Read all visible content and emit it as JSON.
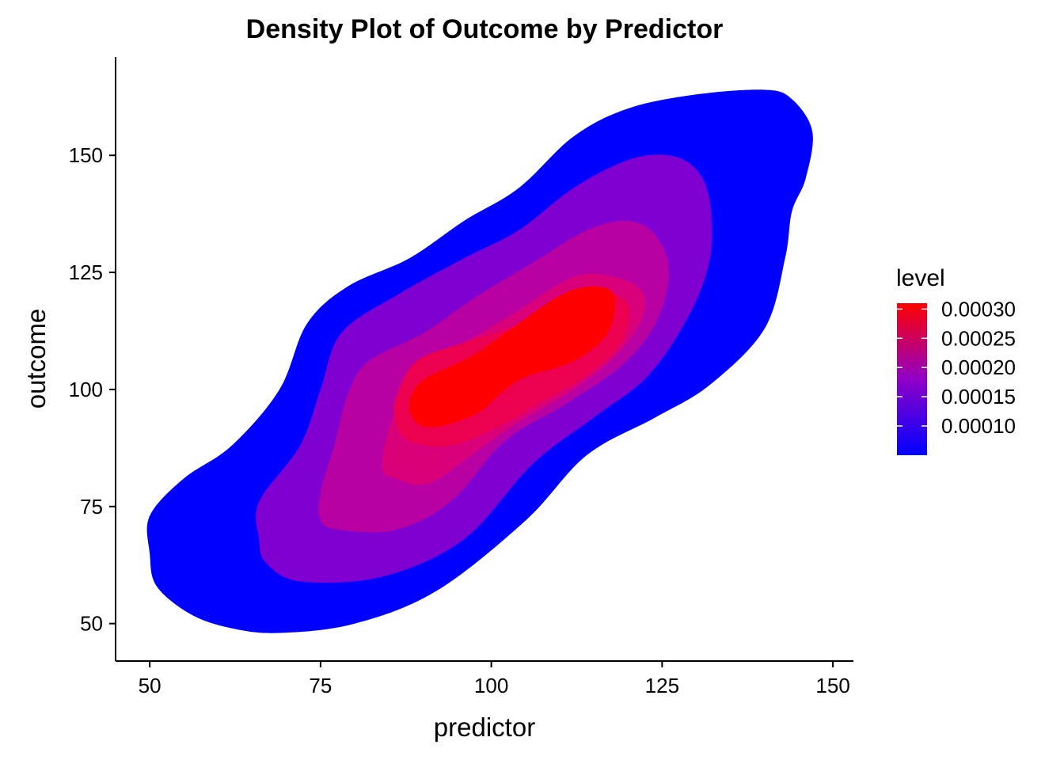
{
  "chart_data": {
    "type": "density_contour",
    "title": "Density Plot of Outcome by Predictor",
    "xlabel": "predictor",
    "ylabel": "outcome",
    "xlim": [
      45,
      153
    ],
    "ylim": [
      42,
      171
    ],
    "x_ticks": [
      50,
      75,
      100,
      125,
      150
    ],
    "y_ticks": [
      50,
      75,
      100,
      125,
      150
    ],
    "grid": false,
    "legend": {
      "title": "level",
      "placement": "right",
      "range": [
        5e-05,
        0.00031
      ],
      "breaks": [
        {
          "value": 0.0003,
          "label": "0.00030"
        },
        {
          "value": 0.00025,
          "label": "0.00025"
        },
        {
          "value": 0.0002,
          "label": "0.00020"
        },
        {
          "value": 0.00015,
          "label": "0.00015"
        },
        {
          "value": 0.0001,
          "label": "0.00010"
        }
      ],
      "low_color": "#0000FF",
      "high_color": "#FF0000"
    },
    "levels": [
      {
        "level": 5e-05,
        "color": "#0000FF",
        "polygon": [
          [
            55,
            81
          ],
          [
            62,
            88
          ],
          [
            69,
            100
          ],
          [
            73,
            114
          ],
          [
            79,
            122
          ],
          [
            88,
            128
          ],
          [
            96,
            136
          ],
          [
            104,
            143
          ],
          [
            112,
            154
          ],
          [
            120,
            160
          ],
          [
            130,
            163
          ],
          [
            140,
            164
          ],
          [
            144,
            162
          ],
          [
            147,
            155
          ],
          [
            146,
            145
          ],
          [
            144,
            138
          ],
          [
            143,
            128
          ],
          [
            140,
            113
          ],
          [
            132,
            101
          ],
          [
            124,
            94
          ],
          [
            114,
            86
          ],
          [
            105,
            72
          ],
          [
            92,
            57
          ],
          [
            80,
            50
          ],
          [
            69,
            48
          ],
          [
            62,
            49
          ],
          [
            56,
            52
          ],
          [
            51,
            58
          ],
          [
            50,
            65
          ],
          [
            50,
            73
          ]
        ]
      },
      {
        "level": 0.0001,
        "color": "#7F00D0",
        "polygon": [
          [
            66,
            76
          ],
          [
            72,
            88
          ],
          [
            75,
            100
          ],
          [
            78,
            112
          ],
          [
            86,
            120
          ],
          [
            96,
            128
          ],
          [
            104,
            134
          ],
          [
            112,
            143
          ],
          [
            120,
            149
          ],
          [
            126,
            150
          ],
          [
            130,
            147
          ],
          [
            132,
            140
          ],
          [
            132,
            128
          ],
          [
            129,
            116
          ],
          [
            123,
            103
          ],
          [
            115,
            94
          ],
          [
            106,
            84
          ],
          [
            96,
            68
          ],
          [
            84,
            60
          ],
          [
            72,
            59
          ],
          [
            67,
            63
          ],
          [
            66,
            68
          ]
        ]
      },
      {
        "level": 0.00015,
        "color": "#B800A3",
        "polygon": [
          [
            75,
            78
          ],
          [
            77,
            88
          ],
          [
            79,
            99
          ],
          [
            82,
            106
          ],
          [
            90,
            112
          ],
          [
            98,
            120
          ],
          [
            106,
            127
          ],
          [
            114,
            134
          ],
          [
            120,
            136
          ],
          [
            124,
            133
          ],
          [
            126,
            125
          ],
          [
            124,
            114
          ],
          [
            119,
            105
          ],
          [
            111,
            97
          ],
          [
            102,
            89
          ],
          [
            94,
            76
          ],
          [
            86,
            70
          ],
          [
            78,
            70
          ],
          [
            75,
            72
          ]
        ]
      },
      {
        "level": 0.0002,
        "color": "#D9007A",
        "polygon": [
          [
            84,
            84
          ],
          [
            86,
            96
          ],
          [
            89,
            104
          ],
          [
            96,
            110
          ],
          [
            103,
            116
          ],
          [
            112,
            124
          ],
          [
            118,
            124
          ],
          [
            122,
            121
          ],
          [
            122,
            115
          ],
          [
            118,
            107
          ],
          [
            112,
            100
          ],
          [
            104,
            93
          ],
          [
            98,
            87
          ],
          [
            91,
            80
          ],
          [
            86,
            81
          ]
        ]
      },
      {
        "level": 0.00025,
        "color": "#EE0050",
        "polygon": [
          [
            86,
            98
          ],
          [
            89,
            106
          ],
          [
            96,
            110
          ],
          [
            104,
            114
          ],
          [
            110,
            120
          ],
          [
            116,
            121
          ],
          [
            120,
            118
          ],
          [
            119,
            110
          ],
          [
            114,
            103
          ],
          [
            107,
            97
          ],
          [
            101,
            92
          ],
          [
            94,
            88
          ],
          [
            88,
            89
          ],
          [
            86,
            93
          ]
        ]
      },
      {
        "level": 0.0003,
        "color": "#FF0000",
        "polygon": [
          [
            88,
            97
          ],
          [
            90,
            102
          ],
          [
            97,
            107
          ],
          [
            102,
            112
          ],
          [
            110,
            120
          ],
          [
            115,
            122
          ],
          [
            118,
            120
          ],
          [
            117,
            112
          ],
          [
            112,
            106
          ],
          [
            104,
            102
          ],
          [
            98,
            95
          ],
          [
            92,
            92
          ],
          [
            89,
            93
          ]
        ]
      }
    ]
  }
}
